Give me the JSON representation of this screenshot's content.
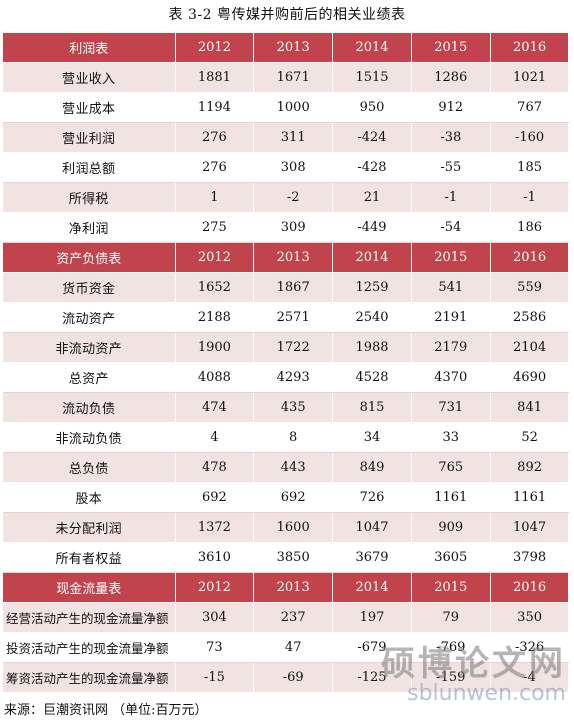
{
  "caption": "表 3-2  粤传媒并购前后的相关业绩表",
  "sections": [
    {
      "header": [
        "利润表",
        "2012",
        "2013",
        "2014",
        "2015",
        "2016"
      ],
      "rows": [
        [
          "营业收入",
          "1881",
          "1671",
          "1515",
          "1286",
          "1021"
        ],
        [
          "营业成本",
          "1194",
          "1000",
          "950",
          "912",
          "767"
        ],
        [
          "营业利润",
          "276",
          "311",
          "-424",
          "-38",
          "-160"
        ],
        [
          "利润总额",
          "276",
          "308",
          "-428",
          "-55",
          "185"
        ],
        [
          "所得税",
          "1",
          "-2",
          "21",
          "-1",
          "-1"
        ],
        [
          "净利润",
          "275",
          "309",
          "-449",
          "-54",
          "186"
        ]
      ]
    },
    {
      "header": [
        "资产负债表",
        "2012",
        "2013",
        "2014",
        "2015",
        "2016"
      ],
      "rows": [
        [
          "货币资金",
          "1652",
          "1867",
          "1259",
          "541",
          "559"
        ],
        [
          "流动资产",
          "2188",
          "2571",
          "2540",
          "2191",
          "2586"
        ],
        [
          "非流动资产",
          "1900",
          "1722",
          "1988",
          "2179",
          "2104"
        ],
        [
          "总资产",
          "4088",
          "4293",
          "4528",
          "4370",
          "4690"
        ],
        [
          "流动负债",
          "474",
          "435",
          "815",
          "731",
          "841"
        ],
        [
          "非流动负债",
          "4",
          "8",
          "34",
          "33",
          "52"
        ],
        [
          "总负债",
          "478",
          "443",
          "849",
          "765",
          "892"
        ],
        [
          "股本",
          "692",
          "692",
          "726",
          "1161",
          "1161"
        ],
        [
          "未分配利润",
          "1372",
          "1600",
          "1047",
          "909",
          "1047"
        ],
        [
          "所有者权益",
          "3610",
          "3850",
          "3679",
          "3605",
          "3798"
        ]
      ]
    },
    {
      "header": [
        "现金流量表",
        "2012",
        "2013",
        "2014",
        "2015",
        "2016"
      ],
      "rows": [
        [
          "经营活动产生的现金流量净额",
          "304",
          "237",
          "197",
          "79",
          "350"
        ],
        [
          "投资活动产生的现金流量净额",
          "73",
          "47",
          "-679",
          "-769",
          "-326"
        ],
        [
          "筹资活动产生的现金流量净额",
          "-15",
          "-69",
          "-125",
          "-159",
          "-4"
        ]
      ]
    }
  ],
  "source": "来源：巨潮资讯网  （单位:百万元）",
  "watermark": {
    "main": "硕博论文网",
    "sub": "sblunwen.com"
  }
}
